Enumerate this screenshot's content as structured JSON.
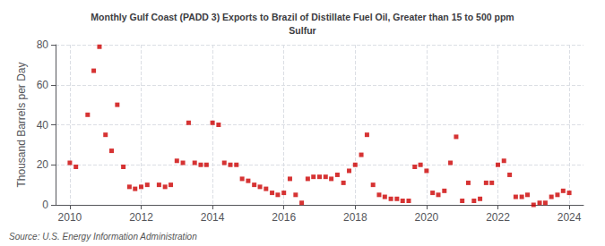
{
  "chart_data": {
    "type": "scatter",
    "title": "Monthly Gulf Coast (PADD 3) Exports to Brazil of Distillate Fuel Oil, Greater than 15 to 500 ppm\nSulfur",
    "ylabel": "Thousand Barrels per Day",
    "source": "Source: U.S. Energy Information Administration",
    "color": "#cc0000",
    "marker": "square",
    "grid": true,
    "xlim": [
      2009.6,
      2024.4
    ],
    "xticks": [
      2010,
      2012,
      2014,
      2016,
      2018,
      2020,
      2022,
      2024
    ],
    "ylim": [
      0,
      80
    ],
    "yticks": [
      0,
      20,
      40,
      60,
      80
    ],
    "x": [
      2010.0,
      2010.17,
      2010.5,
      2010.67,
      2010.83,
      2011.0,
      2011.17,
      2011.33,
      2011.5,
      2011.67,
      2011.83,
      2012.0,
      2012.17,
      2012.5,
      2012.67,
      2012.83,
      2013.0,
      2013.17,
      2013.33,
      2013.5,
      2013.67,
      2013.83,
      2014.0,
      2014.17,
      2014.33,
      2014.5,
      2014.67,
      2014.83,
      2015.0,
      2015.17,
      2015.33,
      2015.5,
      2015.67,
      2015.83,
      2016.0,
      2016.17,
      2016.33,
      2016.5,
      2016.67,
      2016.83,
      2017.0,
      2017.17,
      2017.33,
      2017.5,
      2017.67,
      2017.83,
      2018.0,
      2018.17,
      2018.33,
      2018.5,
      2018.67,
      2018.83,
      2019.0,
      2019.17,
      2019.33,
      2019.5,
      2019.67,
      2019.83,
      2020.0,
      2020.17,
      2020.33,
      2020.5,
      2020.67,
      2020.83,
      2021.0,
      2021.17,
      2021.33,
      2021.5,
      2021.67,
      2021.83,
      2022.0,
      2022.17,
      2022.33,
      2022.5,
      2022.67,
      2022.83,
      2023.0,
      2023.17,
      2023.33,
      2023.5,
      2023.67,
      2023.83,
      2024.0
    ],
    "values": [
      21,
      19,
      45,
      67,
      79,
      35,
      27,
      50,
      19,
      9,
      8,
      9,
      10,
      10,
      9,
      10,
      22,
      21,
      41,
      21,
      20,
      20,
      41,
      40,
      21,
      20,
      20,
      13,
      12,
      10,
      9,
      8,
      6,
      5,
      6,
      13,
      5,
      1,
      13,
      14,
      14,
      14,
      13,
      15,
      11,
      17,
      20,
      25,
      35,
      10,
      5,
      4,
      3,
      3,
      2,
      2,
      19,
      20,
      17,
      6,
      5,
      7,
      21,
      34,
      2,
      11,
      2,
      3,
      11,
      11,
      20,
      22,
      15,
      4,
      4,
      5,
      0,
      1,
      1,
      4,
      5,
      7,
      6
    ]
  }
}
